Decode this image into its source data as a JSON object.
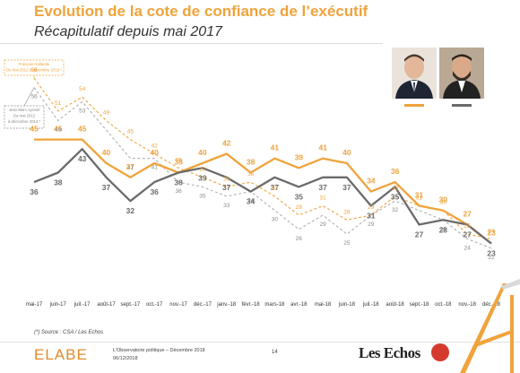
{
  "header": {
    "title": "Evolution de la cote de confiance de l’exécutif",
    "subtitle": "Récapitulatif depuis mai 2017"
  },
  "colors": {
    "macron": "#f0a33b",
    "philippe": "#6b6b6b",
    "accent": "#e58a2b"
  },
  "chart_data": {
    "type": "line",
    "categories": [
      "mai-17",
      "juin-17",
      "juil.-17",
      "août-17",
      "sept.-17",
      "oct.-17",
      "nov.-17",
      "déc.-17",
      "janv.-18",
      "févr.-18",
      "mars-18",
      "avr.-18",
      "mai-18",
      "juin-18",
      "juil.-18",
      "août-18",
      "sept.-18",
      "oct.-18",
      "nov.-18",
      "déc.-18"
    ],
    "series": [
      {
        "values": [
          45,
          45,
          45,
          40,
          37,
          40,
          38,
          40,
          42,
          38,
          41,
          39,
          41,
          40,
          34,
          36,
          31,
          30,
          27,
          23
        ],
        "style": "solid",
        "color": "#f0a33b"
      },
      {
        "values": [
          36,
          38,
          43,
          37,
          32,
          36,
          38,
          39,
          37,
          34,
          37,
          35,
          37,
          37,
          31,
          35,
          27,
          28,
          27,
          23
        ],
        "style": "solid",
        "color": "#6b6b6b"
      },
      {
        "values": [
          58,
          51,
          54,
          49,
          45,
          42,
          39,
          37,
          35,
          36,
          33,
          29,
          31,
          28,
          29,
          33,
          31,
          30,
          25,
          24
        ],
        "style": "dashed",
        "color": "#f0a33b"
      },
      {
        "values": [
          56,
          49,
          53,
          null,
          41,
          41,
          36,
          35,
          33,
          34,
          30,
          26,
          29,
          25,
          29,
          32,
          null,
          28,
          24,
          22
        ],
        "style": "dashed",
        "color": "#b0b0b0"
      }
    ],
    "annotations": [
      "François Hollande Du mai 2012 à décembre 2016 *",
      "Jean-Marc Ayrault Du mai 2012 à décembre 2013 *"
    ],
    "ylim": [
      18,
      62
    ],
    "grid": false
  },
  "footer": {
    "source": "(*) Source : CSA / Les Echos",
    "brand": "ELABE",
    "publication": "L’Observatoire politique – Décembre 2018",
    "date": "06/12/2018",
    "page": "14",
    "partner": "Les Echos"
  }
}
